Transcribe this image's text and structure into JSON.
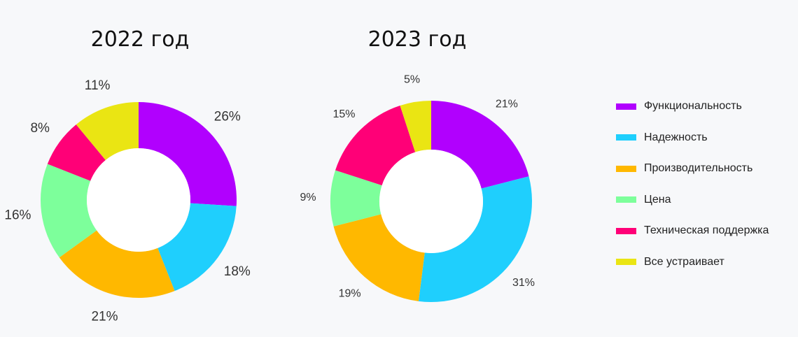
{
  "colors": {
    "Функциональность": "#b100fe",
    "Надежность": "#1fcffd",
    "Производительность": "#ffb800",
    "Цена": "#7dff9b",
    "Техническая поддержка": "#ff0077",
    "Все устраивает": "#eae513"
  },
  "legend": {
    "items": [
      {
        "label": "Функциональность",
        "color": "#b100fe",
        "icon": "legend-swatch"
      },
      {
        "label": "Надежность",
        "color": "#1fcffd",
        "icon": "legend-swatch"
      },
      {
        "label": "Производительность",
        "color": "#ffb800",
        "icon": "legend-swatch"
      },
      {
        "label": "Цена",
        "color": "#7dff9b",
        "icon": "legend-swatch"
      },
      {
        "label": "Техническая поддержка",
        "color": "#ff0077",
        "icon": "legend-swatch"
      },
      {
        "label": "Все устраивает",
        "color": "#eae513",
        "icon": "legend-swatch"
      }
    ],
    "placement": "right"
  },
  "chart_data": [
    {
      "type": "pie",
      "variant": "donut",
      "title": "2022 год",
      "categories": [
        "Функциональность",
        "Надежность",
        "Производительность",
        "Цена",
        "Техническая поддержка",
        "Все устраивает"
      ],
      "values": [
        26,
        18,
        21,
        16,
        8,
        11
      ],
      "labels": [
        "26%",
        "18%",
        "21%",
        "16%",
        "8%",
        "11%"
      ],
      "unit": "%"
    },
    {
      "type": "pie",
      "variant": "donut",
      "title": "2023 год",
      "categories": [
        "Функциональность",
        "Надежность",
        "Производительность",
        "Цена",
        "Техническая поддержка",
        "Все устраивает"
      ],
      "values": [
        21,
        31,
        19,
        9,
        15,
        5
      ],
      "labels": [
        "21%",
        "31%",
        "19%",
        "9%",
        "15%",
        "5%"
      ],
      "unit": "%"
    }
  ]
}
